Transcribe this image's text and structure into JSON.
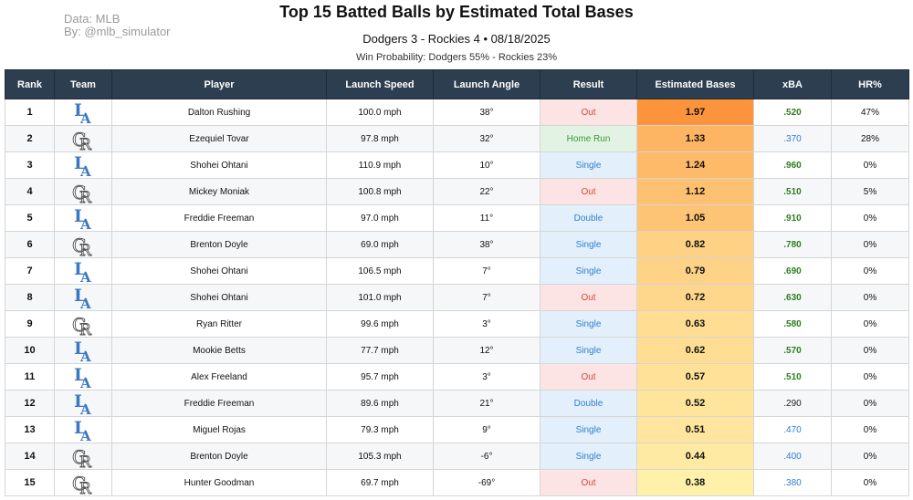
{
  "credits": {
    "line1": "Data: MLB",
    "line2": "By: @mlb_simulator"
  },
  "title": "Top 15 Batted Balls by Estimated Total Bases",
  "subtitle": "Dodgers 3 - Rockies 4  •  08/18/2025",
  "win_probability": "Win Probability: Dodgers 55% - Rockies 23%",
  "colors": {
    "header_bg": "#2c3e50",
    "out_bg": "#fde4e4",
    "out_text": "#d9463b",
    "single_bg": "#e3f0fb",
    "single_text": "#2f7fd0",
    "double_bg": "#e3f0fb",
    "double_text": "#2f7fd0",
    "homerun_bg": "#e3f3e3",
    "homerun_text": "#3a9a3a",
    "xba_high": "#2e7d1e",
    "xba_low": "#2f7fd0",
    "xba_mid": "#222222",
    "dodgers": "#3a78c2",
    "rockies": "#555555"
  },
  "chart_data": {
    "type": "table",
    "title": "Top 15 Batted Balls by Estimated Total Bases",
    "columns": [
      "Rank",
      "Team",
      "Player",
      "Launch Speed",
      "Launch Angle",
      "Result",
      "Estimated Bases",
      "xBA",
      "HR%"
    ],
    "rows": [
      {
        "rank": "1",
        "team": "LA",
        "player": "Dalton Rushing",
        "speed": "100.0 mph",
        "angle": "38°",
        "result": "Out",
        "est": "1.97",
        "xba": ".520",
        "hr": "47%"
      },
      {
        "rank": "2",
        "team": "CR",
        "player": "Ezequiel Tovar",
        "speed": "97.8 mph",
        "angle": "32°",
        "result": "Home Run",
        "est": "1.33",
        "xba": ".370",
        "hr": "28%"
      },
      {
        "rank": "3",
        "team": "LA",
        "player": "Shohei Ohtani",
        "speed": "110.9 mph",
        "angle": "10°",
        "result": "Single",
        "est": "1.24",
        "xba": ".960",
        "hr": "0%"
      },
      {
        "rank": "4",
        "team": "CR",
        "player": "Mickey Moniak",
        "speed": "100.8 mph",
        "angle": "22°",
        "result": "Out",
        "est": "1.12",
        "xba": ".510",
        "hr": "5%"
      },
      {
        "rank": "5",
        "team": "LA",
        "player": "Freddie Freeman",
        "speed": "97.0 mph",
        "angle": "11°",
        "result": "Double",
        "est": "1.05",
        "xba": ".910",
        "hr": "0%"
      },
      {
        "rank": "6",
        "team": "CR",
        "player": "Brenton Doyle",
        "speed": "69.0 mph",
        "angle": "38°",
        "result": "Single",
        "est": "0.82",
        "xba": ".780",
        "hr": "0%"
      },
      {
        "rank": "7",
        "team": "LA",
        "player": "Shohei Ohtani",
        "speed": "106.5 mph",
        "angle": "7°",
        "result": "Single",
        "est": "0.79",
        "xba": ".690",
        "hr": "0%"
      },
      {
        "rank": "8",
        "team": "LA",
        "player": "Shohei Ohtani",
        "speed": "101.0 mph",
        "angle": "7°",
        "result": "Out",
        "est": "0.72",
        "xba": ".630",
        "hr": "0%"
      },
      {
        "rank": "9",
        "team": "CR",
        "player": "Ryan Ritter",
        "speed": "99.6 mph",
        "angle": "3°",
        "result": "Single",
        "est": "0.63",
        "xba": ".580",
        "hr": "0%"
      },
      {
        "rank": "10",
        "team": "LA",
        "player": "Mookie Betts",
        "speed": "77.7 mph",
        "angle": "12°",
        "result": "Single",
        "est": "0.62",
        "xba": ".570",
        "hr": "0%"
      },
      {
        "rank": "11",
        "team": "LA",
        "player": "Alex Freeland",
        "speed": "95.7 mph",
        "angle": "3°",
        "result": "Out",
        "est": "0.57",
        "xba": ".510",
        "hr": "0%"
      },
      {
        "rank": "12",
        "team": "LA",
        "player": "Freddie Freeman",
        "speed": "89.6 mph",
        "angle": "21°",
        "result": "Double",
        "est": "0.52",
        "xba": ".290",
        "hr": "0%"
      },
      {
        "rank": "13",
        "team": "LA",
        "player": "Miguel Rojas",
        "speed": "79.3 mph",
        "angle": "9°",
        "result": "Single",
        "est": "0.51",
        "xba": ".470",
        "hr": "0%"
      },
      {
        "rank": "14",
        "team": "CR",
        "player": "Brenton Doyle",
        "speed": "105.3 mph",
        "angle": "-6°",
        "result": "Single",
        "est": "0.44",
        "xba": ".400",
        "hr": "0%"
      },
      {
        "rank": "15",
        "team": "CR",
        "player": "Hunter Goodman",
        "speed": "69.7 mph",
        "angle": "-69°",
        "result": "Out",
        "est": "0.38",
        "xba": ".380",
        "hr": "0%"
      }
    ]
  }
}
